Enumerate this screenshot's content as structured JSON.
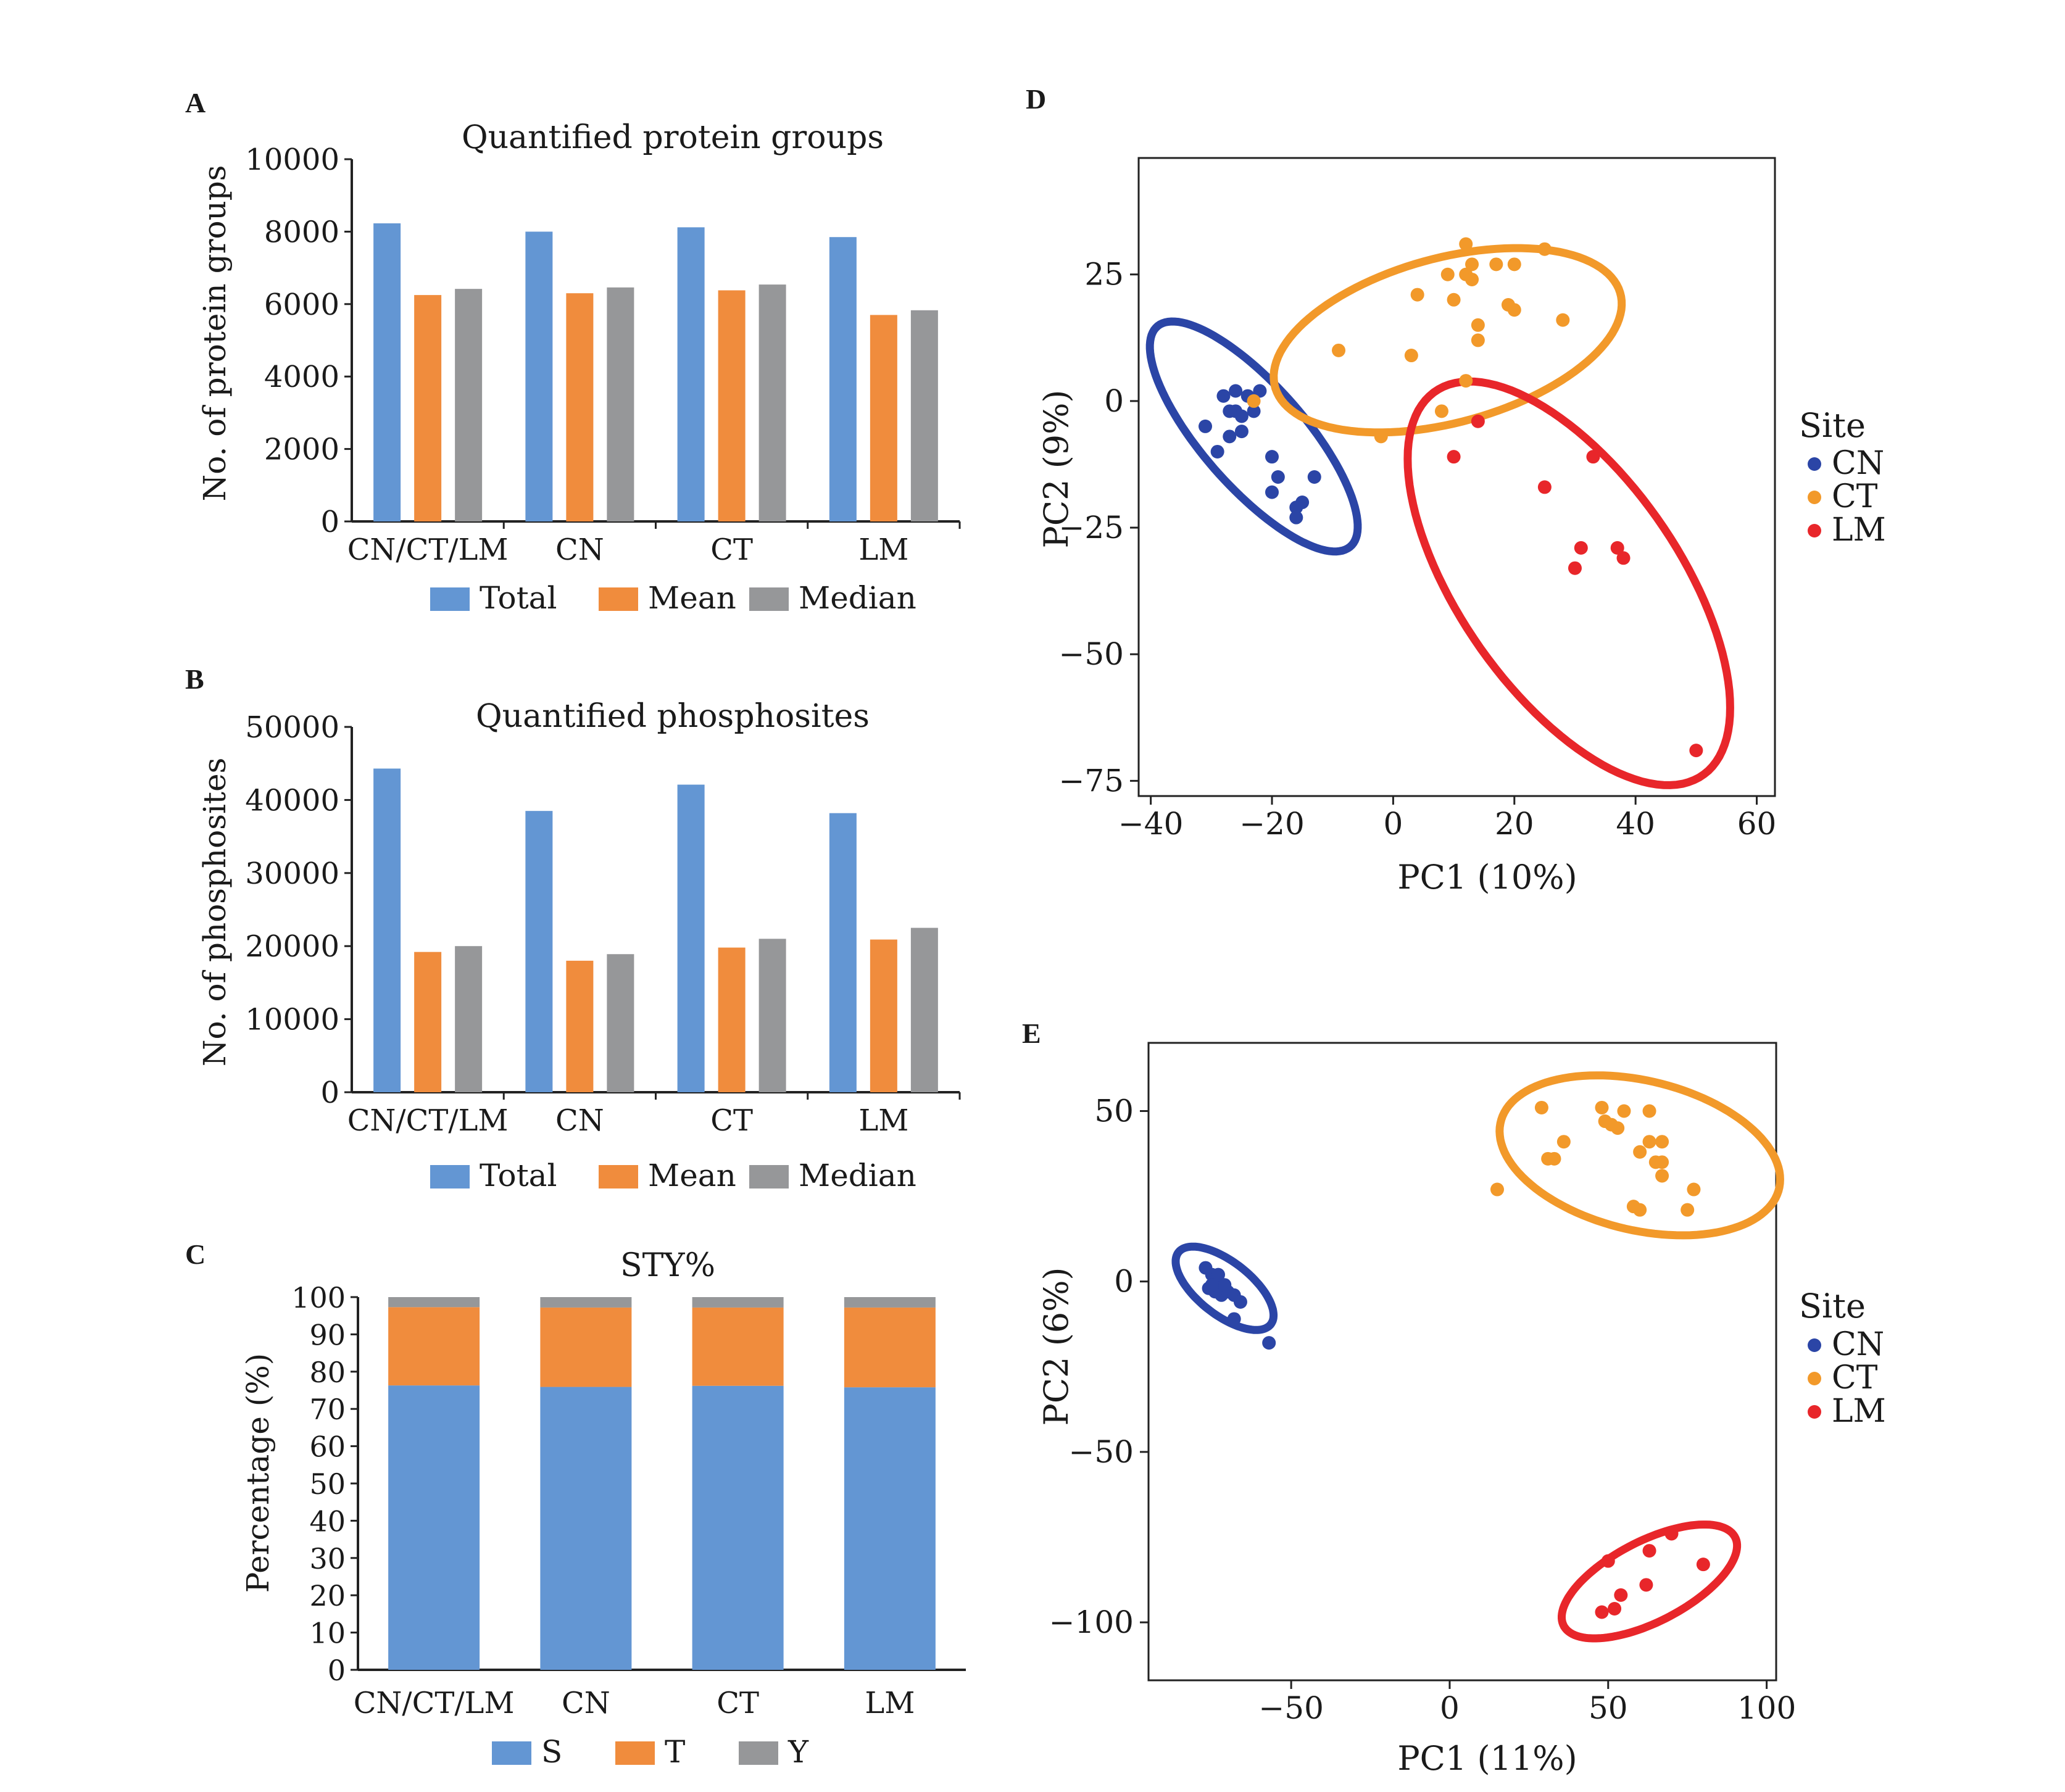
{
  "colors": {
    "total": "#6396d3",
    "mean": "#f08c3d",
    "median": "#969799",
    "S": "#6396d3",
    "T": "#f08c3d",
    "Y": "#969799",
    "CN": "#2b45a6",
    "CT": "#f2992a",
    "LM": "#e8262a"
  },
  "panels": {
    "A": {
      "letter": "A",
      "chart_data": {
        "type": "bar",
        "title": "Quantified protein groups",
        "ylabel": "No. of protein groups",
        "xlabel": "",
        "categories": [
          "CN/CT/LM",
          "CN",
          "CT",
          "LM"
        ],
        "series": [
          {
            "name": "Total",
            "values": [
              8230,
              8000,
              8120,
              7850
            ]
          },
          {
            "name": "Mean",
            "values": [
              6250,
              6300,
              6380,
              5700
            ]
          },
          {
            "name": "Median",
            "values": [
              6420,
              6460,
              6540,
              5830
            ]
          }
        ],
        "ylim": [
          0,
          10000
        ],
        "yticks": [
          "0",
          "2000",
          "4000",
          "6000",
          "8000",
          "10000"
        ],
        "legend": "bottom",
        "grid": false
      }
    },
    "B": {
      "letter": "B",
      "chart_data": {
        "type": "bar",
        "title": "Quantified phosphosites",
        "ylabel": "No. of phosphosites",
        "xlabel": "",
        "categories": [
          "CN/CT/LM",
          "CN",
          "CT",
          "LM"
        ],
        "series": [
          {
            "name": "Total",
            "values": [
              44300,
              38500,
              42100,
              38200
            ]
          },
          {
            "name": "Mean",
            "values": [
              19200,
              18000,
              19800,
              20900
            ]
          },
          {
            "name": "Median",
            "values": [
              20000,
              18900,
              21000,
              22500
            ]
          }
        ],
        "ylim": [
          0,
          50000
        ],
        "yticks": [
          "0",
          "10000",
          "20000",
          "30000",
          "40000",
          "50000"
        ],
        "legend": "bottom",
        "grid": false
      }
    },
    "C": {
      "letter": "C",
      "chart_data": {
        "type": "bar",
        "stacked": true,
        "title": "STY%",
        "ylabel": "Percentage (%)",
        "xlabel": "",
        "categories": [
          "CN/CT/LM",
          "CN",
          "CT",
          "LM"
        ],
        "series": [
          {
            "name": "S",
            "values": [
              76.3,
              75.9,
              76.2,
              75.8
            ]
          },
          {
            "name": "T",
            "values": [
              21.0,
              21.3,
              21.0,
              21.4
            ]
          },
          {
            "name": "Y",
            "values": [
              2.7,
              2.8,
              2.8,
              2.8
            ]
          }
        ],
        "ylim": [
          0,
          100
        ],
        "yticks": [
          "0",
          "10",
          "20",
          "30",
          "40",
          "50",
          "60",
          "70",
          "80",
          "90",
          "100"
        ],
        "legend": "bottom",
        "grid": false
      }
    },
    "D": {
      "letter": "D",
      "chart_data": {
        "type": "scatter",
        "xlabel": "PC1 (10%)",
        "ylabel": "PC2 (9%)",
        "xlim": [
          -42,
          63
        ],
        "ylim": [
          -78,
          48
        ],
        "xticks": [
          -40,
          -20,
          0,
          20,
          40,
          60
        ],
        "yticks": [
          25,
          0,
          -25,
          -50,
          -75
        ],
        "legend_title": "Site",
        "legend": "right",
        "grid": false,
        "series": [
          {
            "name": "CN",
            "points": [
              [
                -26,
                2
              ],
              [
                -24,
                1
              ],
              [
                -22,
                2
              ],
              [
                -28,
                1
              ],
              [
                -26,
                -2
              ],
              [
                -27,
                -2
              ],
              [
                -25,
                -3
              ],
              [
                -23,
                -2
              ],
              [
                -31,
                -5
              ],
              [
                -27,
                -7
              ],
              [
                -25,
                -6
              ],
              [
                -29,
                -10
              ],
              [
                -20,
                -11
              ],
              [
                -19,
                -15
              ],
              [
                -20,
                -18
              ],
              [
                -13,
                -15
              ],
              [
                -15,
                -20
              ],
              [
                -16,
                -21
              ],
              [
                -16,
                -23
              ]
            ],
            "ellipse": {
              "cx": -23,
              "cy": -7,
              "rx": 27,
              "ry": 9,
              "angle_deg": -55
            }
          },
          {
            "name": "CT",
            "points": [
              [
                12,
                31
              ],
              [
                25,
                30
              ],
              [
                17,
                27
              ],
              [
                20,
                27
              ],
              [
                13,
                27
              ],
              [
                12,
                25
              ],
              [
                9,
                25
              ],
              [
                13,
                24
              ],
              [
                4,
                21
              ],
              [
                10,
                20
              ],
              [
                19,
                19
              ],
              [
                20,
                18
              ],
              [
                28,
                16
              ],
              [
                14,
                15
              ],
              [
                14,
                12
              ],
              [
                -9,
                10
              ],
              [
                3,
                9
              ],
              [
                12,
                4
              ],
              [
                8,
                -2
              ],
              [
                -2,
                -7
              ],
              [
                -23,
                0
              ]
            ],
            "ellipse": {
              "cx": 9,
              "cy": 12,
              "rx": 30,
              "ry": 16,
              "angle_deg": 20
            }
          },
          {
            "name": "LM",
            "points": [
              [
                14,
                -4
              ],
              [
                10,
                -11
              ],
              [
                33,
                -11
              ],
              [
                25,
                -17
              ],
              [
                31,
                -29
              ],
              [
                37,
                -29
              ],
              [
                38,
                -31
              ],
              [
                30,
                -33
              ],
              [
                50,
                -69
              ]
            ],
            "ellipse": {
              "cx": 29,
              "cy": -36,
              "rx": 44,
              "ry": 19,
              "angle_deg": -62
            }
          }
        ]
      }
    },
    "E": {
      "letter": "E",
      "chart_data": {
        "type": "scatter",
        "xlabel": "PC1 (11%)",
        "ylabel": "PC2 (6%)",
        "xlim": [
          -95,
          103
        ],
        "ylim": [
          -117,
          70
        ],
        "xticks": [
          -50,
          0,
          50,
          100
        ],
        "yticks": [
          50,
          0,
          -50,
          -100
        ],
        "legend_title": "Site",
        "legend": "right",
        "grid": false,
        "series": [
          {
            "name": "CN",
            "points": [
              [
                -77,
                4
              ],
              [
                -75,
                2
              ],
              [
                -73,
                0
              ],
              [
                -76,
                -2
              ],
              [
                -74,
                -3
              ],
              [
                -72,
                -4
              ],
              [
                -70,
                -3
              ],
              [
                -68,
                -4
              ],
              [
                -71,
                -1
              ],
              [
                -73,
                2
              ],
              [
                -75,
                -1
              ],
              [
                -66,
                -6
              ],
              [
                -68,
                -11
              ],
              [
                -57,
                -18
              ]
            ],
            "ellipse": {
              "cx": -71,
              "cy": -2,
              "rx": 18,
              "ry": 8,
              "angle_deg": -35
            }
          },
          {
            "name": "CT",
            "points": [
              [
                29,
                51
              ],
              [
                48,
                51
              ],
              [
                55,
                50
              ],
              [
                63,
                50
              ],
              [
                49,
                47
              ],
              [
                51,
                46
              ],
              [
                53,
                45
              ],
              [
                63,
                41
              ],
              [
                67,
                41
              ],
              [
                36,
                41
              ],
              [
                60,
                38
              ],
              [
                31,
                36
              ],
              [
                33,
                36
              ],
              [
                65,
                35
              ],
              [
                67,
                35
              ],
              [
                67,
                31
              ],
              [
                77,
                27
              ],
              [
                15,
                27
              ],
              [
                58,
                22
              ],
              [
                60,
                21
              ],
              [
                75,
                21
              ]
            ],
            "ellipse": {
              "cx": 60,
              "cy": 37,
              "rx": 45,
              "ry": 22,
              "angle_deg": -12
            }
          },
          {
            "name": "LM",
            "points": [
              [
                70,
                -74
              ],
              [
                63,
                -79
              ],
              [
                50,
                -82
              ],
              [
                80,
                -83
              ],
              [
                62,
                -89
              ],
              [
                54,
                -92
              ],
              [
                52,
                -96
              ],
              [
                48,
                -97
              ]
            ],
            "ellipse": {
              "cx": 63,
              "cy": -88,
              "rx": 30,
              "ry": 12,
              "angle_deg": 25
            }
          }
        ]
      }
    }
  }
}
